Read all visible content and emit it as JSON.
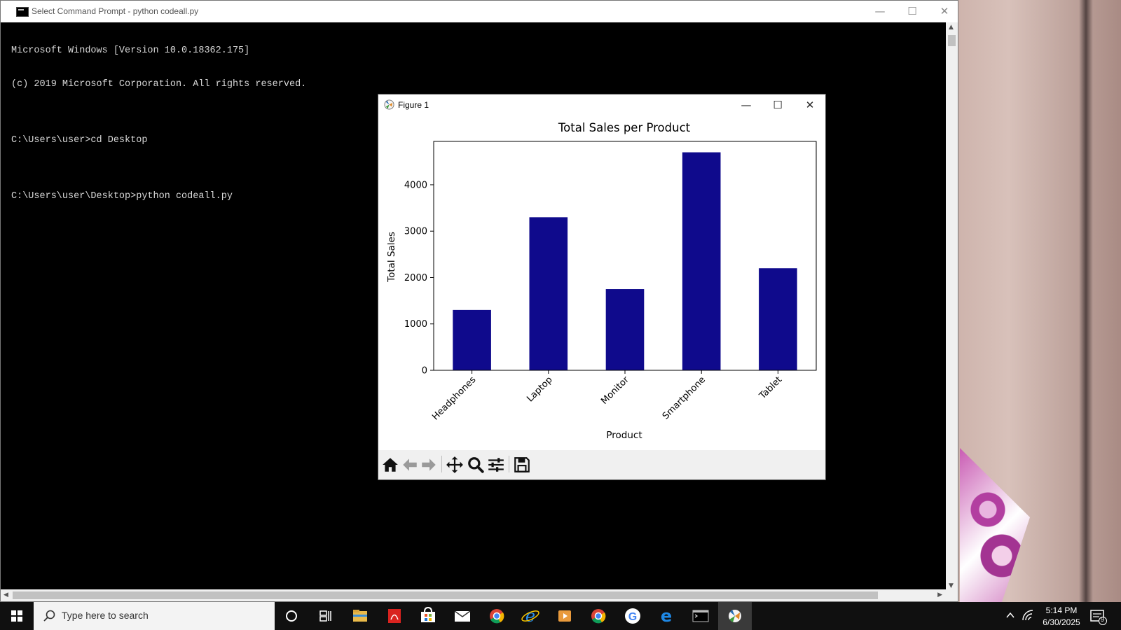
{
  "cmd_window": {
    "title": "Select Command Prompt - python  codeall.py",
    "minimize": "—",
    "maximize": "☐",
    "close": "✕",
    "lines": [
      "Microsoft Windows [Version 10.0.18362.175]",
      "(c) 2019 Microsoft Corporation. All rights reserved.",
      "",
      "C:\\Users\\user>cd Desktop",
      "",
      "C:\\Users\\user\\Desktop>python codeall.py"
    ]
  },
  "figure_window": {
    "title": "Figure 1",
    "minimize": "—",
    "maximize": "☐",
    "close": "✕",
    "toolbar": [
      "home-icon",
      "back-arrow-icon",
      "forward-arrow-icon",
      "pan-icon",
      "zoom-icon",
      "configure-subplots-icon",
      "save-icon"
    ]
  },
  "chart_data": {
    "type": "bar",
    "title": "Total Sales per Product",
    "xlabel": "Product",
    "ylabel": "Total Sales",
    "categories": [
      "Headphones",
      "Laptop",
      "Monitor",
      "Smartphone",
      "Tablet"
    ],
    "values": [
      1300,
      3300,
      1750,
      4700,
      2200
    ],
    "ylim": [
      0,
      4935
    ],
    "yticks": [
      0,
      1000,
      2000,
      3000,
      4000
    ],
    "bar_color": "#0f0a8c",
    "grid": false,
    "legend": "none"
  },
  "taskbar": {
    "search_placeholder": "Type here to search",
    "apps": [
      "cortana-icon",
      "task-view-icon",
      "file-explorer-icon",
      "acrobat-icon",
      "store-icon",
      "mail-icon",
      "chrome-icon",
      "internet-explorer-icon",
      "media-player-icon",
      "chrome-icon",
      "google-icon",
      "edge-icon",
      "command-prompt-icon",
      "matplotlib-figure-icon"
    ],
    "time": "5:14 PM",
    "date": "6/30/2025",
    "notification_count": "9"
  }
}
